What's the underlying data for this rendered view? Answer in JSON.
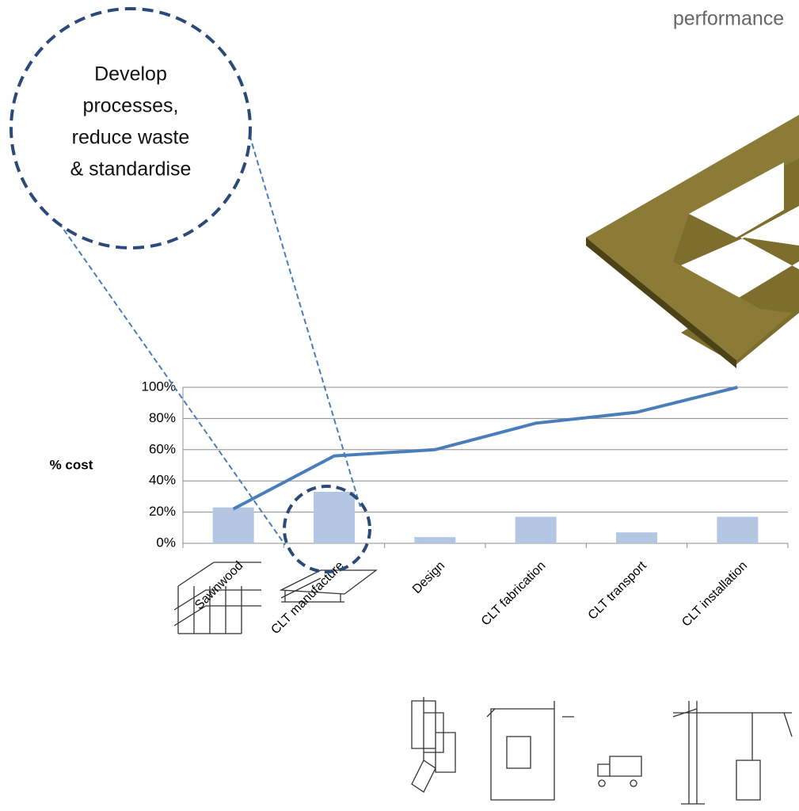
{
  "chart_data": {
    "type": "bar",
    "categories": [
      "Sawnwood",
      "CLT manufacture",
      "Design",
      "CLT fabrication",
      "CLT transport",
      "CLT installation"
    ],
    "series": [
      {
        "type": "bar",
        "color": "#b3c7e5",
        "values": [
          23,
          33,
          4,
          17,
          7,
          17
        ]
      },
      {
        "type": "line",
        "color": "#4a7ebb",
        "values": [
          22,
          56,
          60,
          77,
          84,
          100
        ]
      }
    ],
    "y_label": "% cost",
    "ylim": [
      0,
      100
    ],
    "yticks": [
      {
        "value": 0,
        "label": "0%"
      },
      {
        "value": 20,
        "label": "20%"
      },
      {
        "value": 40,
        "label": "40%"
      },
      {
        "value": 60,
        "label": "60%"
      },
      {
        "value": 80,
        "label": "80%"
      },
      {
        "value": 100,
        "label": "100%"
      }
    ],
    "grid": true,
    "annotation_lines": [
      "Develop",
      "processes,",
      "reduce waste",
      "& standardise"
    ],
    "corner_text": "performance"
  }
}
